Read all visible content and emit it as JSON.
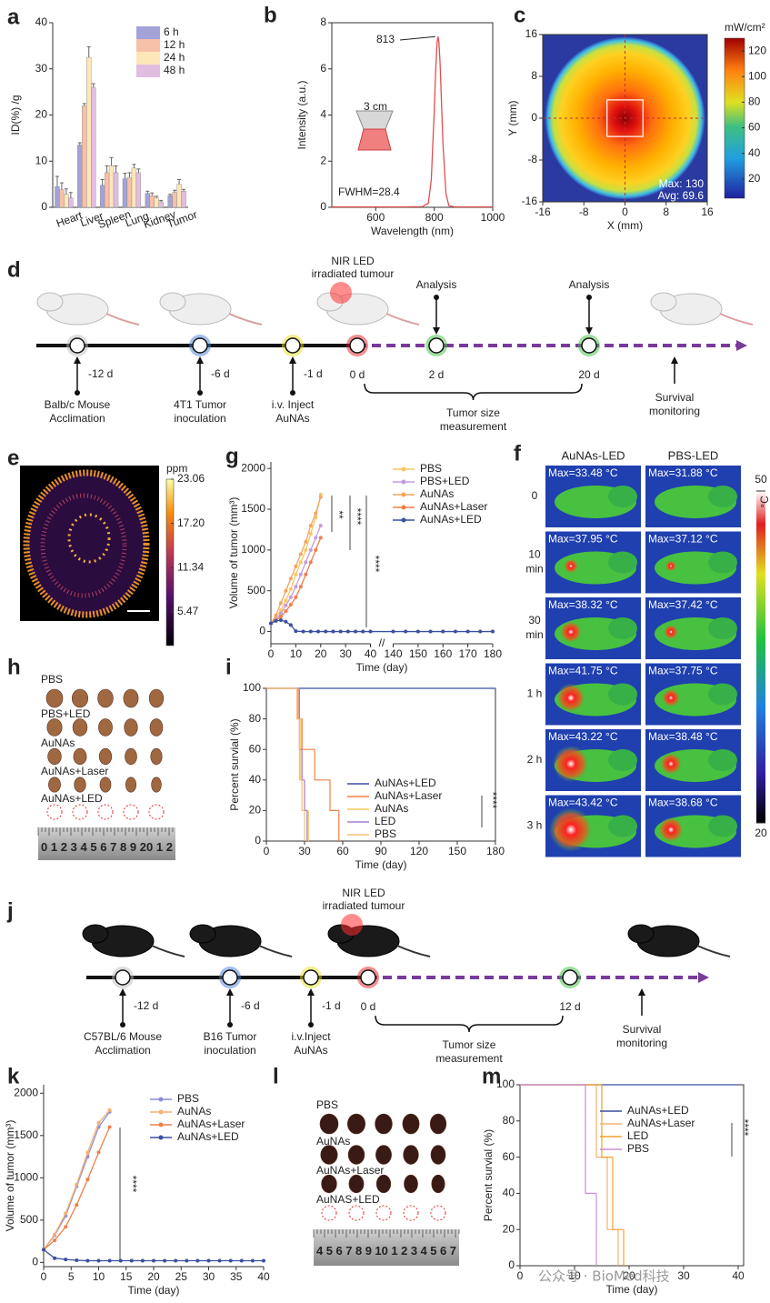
{
  "panel_labels": [
    "a",
    "b",
    "c",
    "d",
    "e",
    "g",
    "f",
    "h",
    "i",
    "j",
    "k",
    "l",
    "m"
  ],
  "chart_data": [
    {
      "type": "bar",
      "ylabel": "ID(%) /g",
      "categories": [
        "Heart",
        "Liver",
        "Spleen",
        "Lung",
        "Kidney",
        "Tumor"
      ],
      "series": [
        {
          "name": "6 h",
          "color": "#a3a3d8",
          "values": [
            4.5,
            13.5,
            4.8,
            6.2,
            3.0,
            2.5
          ],
          "errors": [
            2.2,
            0.5,
            1.2,
            1.2,
            0.5,
            0.3
          ]
        },
        {
          "name": "12 h",
          "color": "#f7c0a8",
          "values": [
            3.8,
            22,
            7.5,
            6.5,
            2.5,
            3.2
          ],
          "errors": [
            1.5,
            0.5,
            1.5,
            1.0,
            0.6,
            0.5
          ]
        },
        {
          "name": "24 h",
          "color": "#fde6b8",
          "values": [
            2.8,
            32.5,
            9.0,
            8.5,
            2.0,
            5.0
          ],
          "errors": [
            1.2,
            2.3,
            1.8,
            0.8,
            0.4,
            1.0
          ]
        },
        {
          "name": "48 h",
          "color": "#e2bde2",
          "values": [
            2.0,
            26,
            7.5,
            7.5,
            1.2,
            3.5
          ],
          "errors": [
            1.2,
            0.8,
            1.5,
            0.8,
            0.3,
            0.4
          ]
        }
      ],
      "ylim": [
        0,
        40
      ],
      "yticks": [
        0,
        10,
        20,
        30,
        40
      ],
      "legend": "upper-right"
    },
    {
      "type": "line",
      "xlabel": "Wavelength (nm)",
      "ylabel": "Intensity (a.u.)",
      "color": "#e05050",
      "x": [
        450,
        700,
        760,
        780,
        790,
        800,
        805,
        810,
        813,
        816,
        820,
        825,
        830,
        840,
        850,
        870,
        1000
      ],
      "values": [
        0.02,
        0.02,
        0.03,
        0.18,
        1.2,
        4.14,
        5.94,
        7.17,
        7.4,
        7.17,
        6.26,
        4.51,
        2.74,
        0.61,
        0.07,
        0.02,
        0.02
      ],
      "peak_x": 813,
      "annotations": [
        "FWHM=28.4",
        "3 cm"
      ],
      "xlim": [
        450,
        1000
      ],
      "xticks": [
        600,
        800,
        1000
      ],
      "ylim": [
        0,
        8
      ],
      "yticks": [
        0,
        2,
        4,
        6,
        8
      ]
    },
    {
      "type": "heatmap",
      "colormap": "jet",
      "xlabel": "X (mm)",
      "ylabel": "Y (mm)",
      "xlim": [
        -16,
        16
      ],
      "xticks": [
        -16,
        -8,
        0,
        8,
        16
      ],
      "ylim": [
        -16,
        16
      ],
      "yticks": [
        -16,
        -8,
        0,
        8,
        16
      ],
      "colorbar": {
        "title": "mW/cm²",
        "lim": [
          5,
          130
        ],
        "ticks": [
          20,
          40,
          60,
          80,
          100,
          120
        ]
      },
      "annotations": [
        "Max: 130",
        "Avg: 69.6"
      ]
    },
    {
      "type": "heatmap",
      "colormap": "inferno",
      "colorbar": {
        "title": "ppm",
        "lim": [
          1,
          23.06
        ],
        "ticks": [
          {
            "value": 23.06,
            "label": "23.06"
          },
          {
            "value": 17.2,
            "label": "17.20"
          },
          {
            "value": 11.34,
            "label": "11.34"
          },
          {
            "value": 5.47,
            "label": "5.47"
          }
        ]
      }
    },
    {
      "type": "line",
      "markers": true,
      "xlabel": "Time (day)",
      "ylabel": "Volume of tumor (mm³)",
      "series": [
        {
          "name": "PBS",
          "color": "#f6c85f",
          "x": [
            0,
            2,
            4,
            6,
            8,
            10,
            12,
            14,
            16,
            18,
            20
          ],
          "values": [
            100,
            180,
            260,
            380,
            520,
            700,
            850,
            1000,
            1200,
            1400,
            1680
          ]
        },
        {
          "name": "PBS+LED",
          "color": "#c59be0",
          "x": [
            0,
            2,
            4,
            6,
            8,
            10,
            12,
            14,
            16,
            18,
            20
          ],
          "values": [
            100,
            150,
            220,
            320,
            420,
            550,
            700,
            850,
            1000,
            1150,
            1300
          ]
        },
        {
          "name": "AuNAs",
          "color": "#f4a460",
          "x": [
            0,
            2,
            4,
            6,
            8,
            10,
            12,
            14,
            16,
            18,
            20
          ],
          "values": [
            100,
            200,
            350,
            500,
            650,
            800,
            950,
            1100,
            1300,
            1450,
            1650
          ]
        },
        {
          "name": "AuNAs+Laser",
          "color": "#ef7f4a",
          "x": [
            0,
            2,
            4,
            6,
            8,
            10,
            12,
            14,
            16,
            18,
            20
          ],
          "values": [
            100,
            140,
            180,
            250,
            330,
            420,
            550,
            700,
            850,
            1000,
            1150
          ]
        },
        {
          "name": "AuNAs+LED",
          "color": "#3b4fa0",
          "x": [
            0,
            2,
            4,
            6,
            8,
            10,
            13,
            16,
            19,
            22,
            25,
            28,
            31,
            34,
            37,
            40,
            140,
            145,
            150,
            155,
            160,
            165,
            170,
            175,
            180
          ],
          "values": [
            100,
            130,
            140,
            120,
            80,
            5,
            0,
            0,
            0,
            0,
            0,
            0,
            0,
            0,
            0,
            0,
            0,
            0,
            0,
            0,
            0,
            0,
            0,
            0,
            0
          ]
        }
      ],
      "xlim": [
        0,
        180
      ],
      "xsegments": [
        [
          0,
          40
        ],
        [
          140,
          180
        ]
      ],
      "xticks": [
        0,
        10,
        20,
        30,
        40,
        140,
        150,
        160,
        170,
        180
      ],
      "ylim": [
        -150,
        2080
      ],
      "yticks": [
        0,
        500,
        1000,
        1500,
        2000
      ],
      "annotations": [
        "**",
        "****",
        "****"
      ],
      "legend": "upper-right"
    },
    {
      "type": "step",
      "xlabel": "Time (day)",
      "ylabel": "Percent survial (%)",
      "series": [
        {
          "name": "AuNAs+LED",
          "color": "#3b4fa0",
          "x": [
            0,
            180
          ],
          "values": [
            100,
            100
          ]
        },
        {
          "name": "AuNAs+Laser",
          "color": "#ef7f4a",
          "x": [
            0,
            25,
            28,
            38,
            50,
            57
          ],
          "values": [
            100,
            80,
            60,
            40,
            20,
            0
          ]
        },
        {
          "name": "AuNAs",
          "color": "#f6c85f",
          "x": [
            0,
            24,
            27,
            30,
            33
          ],
          "values": [
            100,
            80,
            40,
            20,
            0
          ]
        },
        {
          "name": "LED",
          "color": "#a77fd0",
          "x": [
            0,
            26,
            28,
            30,
            32
          ],
          "values": [
            100,
            60,
            40,
            20,
            0
          ]
        },
        {
          "name": "PBS",
          "color": "#f4c07a",
          "x": [
            0,
            24,
            26,
            28,
            30
          ],
          "values": [
            100,
            80,
            40,
            20,
            0
          ]
        }
      ],
      "xlim": [
        0,
        180
      ],
      "xticks": [
        0,
        30,
        60,
        90,
        120,
        150,
        180
      ],
      "ylim": [
        0,
        100
      ],
      "yticks": [
        0,
        20,
        40,
        60,
        80,
        100
      ],
      "annotations": [
        "****"
      ],
      "legend": "lower-right"
    },
    {
      "type": "line",
      "markers": true,
      "xlabel": "Time (day)",
      "ylabel": "Volume of tumor (mm³)",
      "series": [
        {
          "name": "PBS",
          "color": "#8c8cd8",
          "x": [
            0,
            2,
            4,
            6,
            8,
            10,
            12
          ],
          "values": [
            150,
            320,
            550,
            900,
            1250,
            1600,
            1780
          ]
        },
        {
          "name": "AuNAs",
          "color": "#f5b070",
          "x": [
            0,
            2,
            4,
            6,
            8,
            10,
            12
          ],
          "values": [
            150,
            330,
            580,
            920,
            1300,
            1650,
            1800
          ]
        },
        {
          "name": "AuNAs+Laser",
          "color": "#ef7f4a",
          "x": [
            0,
            2,
            4,
            6,
            8,
            10,
            12
          ],
          "values": [
            150,
            260,
            420,
            680,
            980,
            1300,
            1600
          ]
        },
        {
          "name": "AuNAs+LED",
          "color": "#3b4fa0",
          "x": [
            0,
            2,
            4,
            6,
            8,
            10,
            12,
            14,
            16,
            18,
            20,
            22,
            24,
            26,
            28,
            30,
            32,
            34,
            36,
            38,
            40
          ],
          "values": [
            150,
            50,
            35,
            25,
            20,
            20,
            20,
            20,
            20,
            20,
            20,
            20,
            20,
            20,
            20,
            20,
            20,
            20,
            20,
            20,
            20
          ]
        }
      ],
      "xlim": [
        0,
        40
      ],
      "xticks": [
        0,
        5,
        10,
        15,
        20,
        25,
        30,
        35,
        40
      ],
      "ylim": [
        -50,
        2100
      ],
      "yticks": [
        0,
        500,
        1000,
        1500,
        2000
      ],
      "annotations": [
        "****"
      ],
      "legend": "upper-right"
    },
    {
      "type": "step",
      "xlabel": "Time (day)",
      "ylabel": "Percent survial (%)",
      "series": [
        {
          "name": "AuNAs+LED",
          "color": "#3b4fa0",
          "x": [
            0,
            40
          ],
          "values": [
            100,
            100
          ]
        },
        {
          "name": "AuNAs+Laser",
          "color": "#f5b070",
          "x": [
            0,
            14,
            16,
            18
          ],
          "values": [
            100,
            60,
            20,
            0
          ]
        },
        {
          "name": "LED",
          "color": "#f0a030",
          "x": [
            0,
            15,
            17,
            19
          ],
          "values": [
            100,
            60,
            20,
            0
          ]
        },
        {
          "name": "PBS",
          "color": "#c98fd0",
          "x": [
            0,
            12,
            14
          ],
          "values": [
            100,
            40,
            0
          ]
        }
      ],
      "xlim": [
        0,
        41
      ],
      "xticks": [
        0,
        10,
        20,
        30,
        40
      ],
      "ylim": [
        0,
        100
      ],
      "yticks": [
        0,
        20,
        40,
        60,
        80,
        100
      ],
      "annotations": [
        "****"
      ],
      "legend": "upper-right"
    }
  ],
  "timelines": [
    {
      "title": [
        "NIR LED",
        "irradiated tumour"
      ],
      "top_labels": [
        "Analysis",
        "Analysis"
      ],
      "days": [
        "-12 d",
        "-6 d",
        "-1 d",
        "0 d",
        "2 d",
        "20 d"
      ],
      "steps": [
        [
          "Balb/c Mouse",
          "Acclimation"
        ],
        [
          "4T1 Tumor",
          "inoculation"
        ],
        [
          "i.v. Inject",
          "AuNAs"
        ]
      ],
      "bracket": [
        "Tumor size",
        "measurement"
      ],
      "end": [
        "Survival",
        "monitoring"
      ]
    },
    {
      "title": [
        "NIR LED",
        "irradiated tumour"
      ],
      "top_labels": [],
      "days": [
        "-12 d",
        "-6 d",
        "-1 d",
        "0 d",
        "12 d"
      ],
      "steps": [
        [
          "C57BL/6 Mouse",
          "Acclimation"
        ],
        [
          "B16  Tumor",
          "inoculation"
        ],
        [
          "i.v.Inject",
          "AuNAs"
        ]
      ],
      "bracket": [
        "Tumor size",
        "measurement"
      ],
      "end": [
        "Survival",
        "monitoring"
      ]
    }
  ],
  "thermal": {
    "columns": [
      "AuNAs-LED",
      "PBS-LED"
    ],
    "rows": [
      [
        "0"
      ],
      [
        "10",
        "min"
      ],
      [
        "30",
        "min"
      ],
      [
        "1 h"
      ],
      [
        "2 h"
      ],
      [
        "3 h"
      ]
    ],
    "max": [
      [
        "Max=33.48 °C",
        "Max=31.88 °C"
      ],
      [
        "Max=37.95 °C",
        "Max=37.12 °C"
      ],
      [
        "Max=38.32 °C",
        "Max=37.42 °C"
      ],
      [
        "Max=41.75 °C",
        "Max=37.75 °C"
      ],
      [
        "Max=43.22 °C",
        "Max=38.48 °C"
      ],
      [
        "Max=43.42 °C",
        "Max=38.68 °C"
      ]
    ],
    "colorbar": {
      "title": "°C",
      "ticks": [
        50,
        20
      ]
    }
  },
  "photos": [
    {
      "rows": [
        "PBS",
        "PBS+LED",
        "AuNAs",
        "AuNAs+Laser",
        "AuNAs+LED"
      ],
      "ruler": "0 1 2 3 4 5 6 7 8 9 20 1 2"
    },
    {
      "rows": [
        "PBS",
        "AuNAs",
        "AuNAs+Laser",
        "AuNAS+LED"
      ],
      "ruler": "4 5 6 7 8 9 10 1 2 3 4 5 6 7"
    }
  ],
  "watermark": "公众号 · BioMed科技"
}
